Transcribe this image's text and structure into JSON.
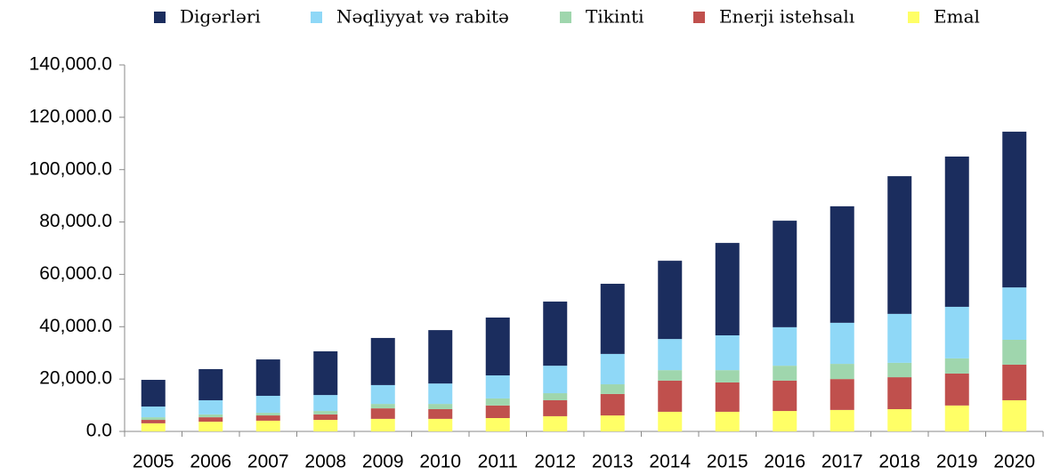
{
  "chart_data": {
    "type": "stacked_bar",
    "categories": [
      "2005",
      "2006",
      "2007",
      "2008",
      "2009",
      "2010",
      "2011",
      "2012",
      "2013",
      "2014",
      "2015",
      "2016",
      "2017",
      "2018",
      "2019",
      "2020"
    ],
    "series": [
      {
        "name": "Digərləri",
        "color": "#1b2d5e",
        "values": [
          10200,
          11900,
          13900,
          16700,
          18000,
          20400,
          22100,
          24500,
          26800,
          29900,
          35300,
          40700,
          44500,
          52600,
          57400,
          59500
        ]
      },
      {
        "name": "Nəqliyyat və rabitə",
        "color": "#8fd8f7",
        "values": [
          4100,
          5400,
          6500,
          6100,
          7200,
          7800,
          8800,
          10500,
          11600,
          11900,
          13300,
          14700,
          15700,
          18700,
          19700,
          20000
        ]
      },
      {
        "name": "Tikinti",
        "color": "#9fd6ad",
        "values": [
          1000,
          1100,
          1000,
          1300,
          1700,
          2000,
          2700,
          2700,
          3700,
          4000,
          4700,
          5700,
          5800,
          5500,
          5800,
          9500
        ]
      },
      {
        "name": "Enerji istehsalı",
        "color": "#c0504d",
        "values": [
          1300,
          1700,
          2000,
          2100,
          4000,
          3700,
          4800,
          6100,
          8200,
          11900,
          11200,
          11600,
          11800,
          12200,
          12200,
          13600
        ]
      },
      {
        "name": "Emal",
        "color": "#ffff66",
        "values": [
          3100,
          3700,
          4100,
          4400,
          4800,
          4800,
          5100,
          5800,
          6100,
          7500,
          7500,
          7800,
          8200,
          8500,
          9900,
          11900
        ]
      }
    ],
    "ylim": [
      0,
      140000
    ],
    "yticks": [
      {
        "value": 0,
        "label": "0.0"
      },
      {
        "value": 20000,
        "label": "20,000.0"
      },
      {
        "value": 40000,
        "label": "40,000.0"
      },
      {
        "value": 60000,
        "label": "60,000.0"
      },
      {
        "value": 80000,
        "label": "80,000.0"
      },
      {
        "value": 100000,
        "label": "100,000.0"
      },
      {
        "value": 120000,
        "label": "120,000.0"
      },
      {
        "value": 140000,
        "label": "140,000.0"
      }
    ],
    "legend": "top"
  }
}
